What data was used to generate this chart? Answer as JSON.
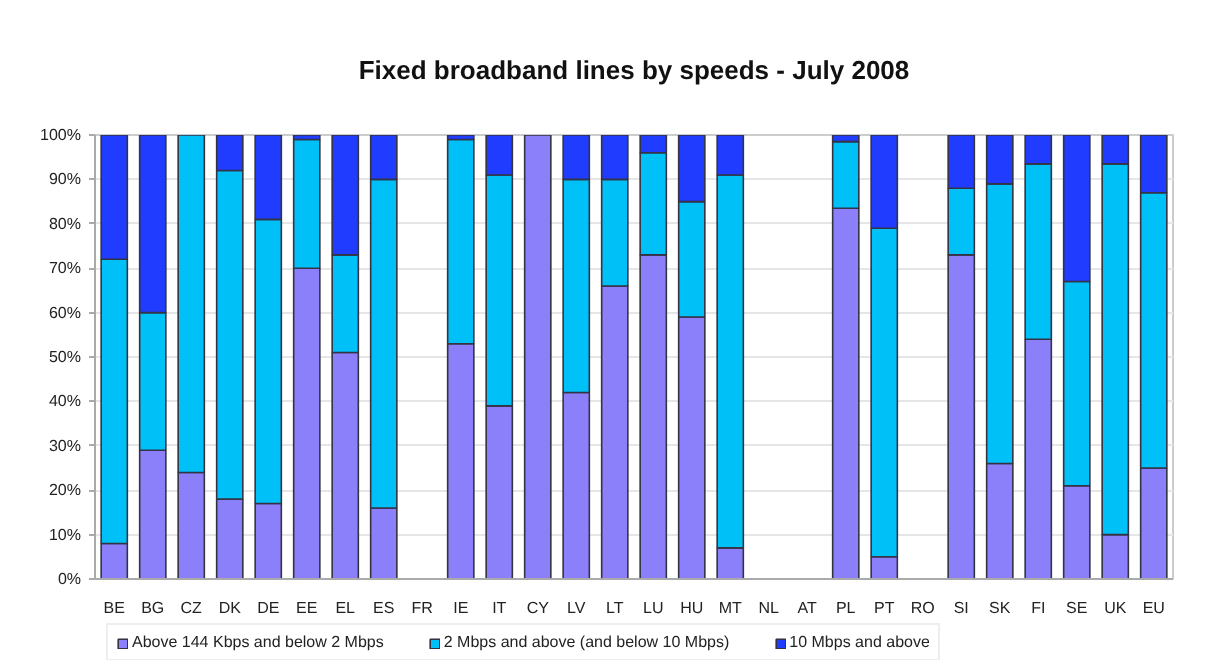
{
  "chart_data": {
    "type": "bar",
    "title": "Fixed broadband lines by speeds - July 2008",
    "categories": [
      "BE",
      "BG",
      "CZ",
      "DK",
      "DE",
      "EE",
      "EL",
      "ES",
      "FR",
      "IE",
      "IT",
      "CY",
      "LV",
      "LT",
      "LU",
      "HU",
      "MT",
      "NL",
      "AT",
      "PL",
      "PT",
      "RO",
      "SI",
      "SK",
      "FI",
      "SE",
      "UK",
      "EU"
    ],
    "stacked": true,
    "series": [
      {
        "name": "Above 144 Kbps and below 2 Mbps",
        "color": "#8b80fa",
        "values": [
          8,
          29,
          24,
          18,
          17,
          70,
          51,
          16,
          null,
          53,
          39,
          100,
          42,
          66,
          73,
          59,
          7,
          null,
          null,
          83.5,
          5,
          null,
          73,
          26,
          54,
          21,
          10,
          25
        ]
      },
      {
        "name": "2 Mbps and above (and below 10 Mbps)",
        "color": "#00c0f8",
        "values": [
          64,
          31,
          76,
          74,
          64,
          29,
          22,
          74,
          null,
          46,
          52,
          0,
          48,
          24,
          23,
          26,
          84,
          null,
          null,
          15,
          74,
          null,
          15,
          63,
          39.5,
          46,
          83.5,
          62
        ]
      },
      {
        "name": "10 Mbps and above",
        "color": "#1f3cff",
        "values": [
          28,
          40,
          0,
          8,
          19,
          1,
          27,
          10,
          null,
          1,
          9,
          0,
          10,
          10,
          4,
          15,
          9,
          null,
          null,
          1.5,
          21,
          null,
          12,
          11,
          6.5,
          33,
          6.5,
          13
        ]
      }
    ],
    "ylim": [
      0,
      100
    ],
    "yticks": [
      {
        "value": 0,
        "label": "0%"
      },
      {
        "value": 10,
        "label": "10%"
      },
      {
        "value": 20,
        "label": "20%"
      },
      {
        "value": 30,
        "label": "30%"
      },
      {
        "value": 40,
        "label": "40%"
      },
      {
        "value": 50,
        "label": "50%"
      },
      {
        "value": 60,
        "label": "60%"
      },
      {
        "value": 70,
        "label": "70%"
      },
      {
        "value": 80,
        "label": "80%"
      },
      {
        "value": 90,
        "label": "90%"
      },
      {
        "value": 100,
        "label": "100%"
      }
    ],
    "grid": "y",
    "legend": "bottom"
  }
}
